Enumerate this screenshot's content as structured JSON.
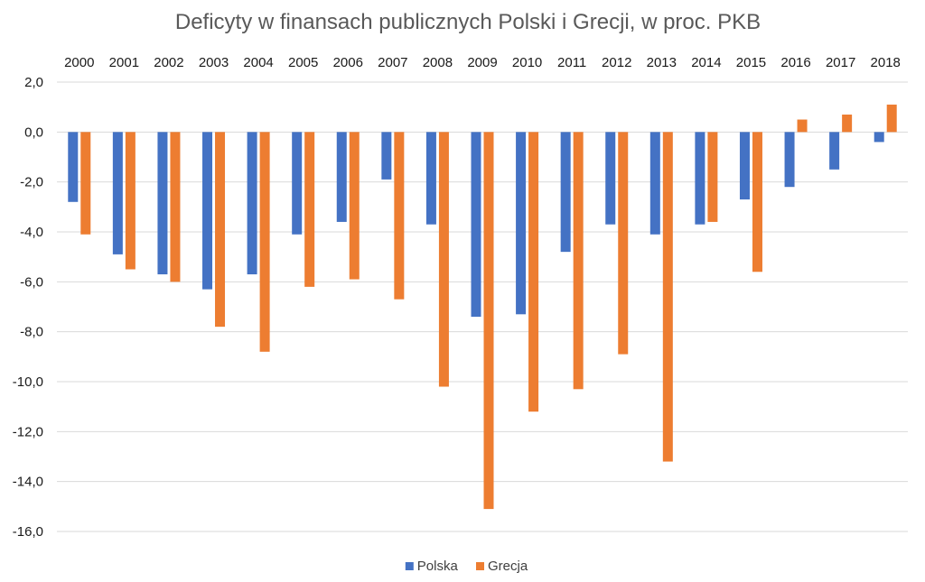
{
  "chart_data": {
    "type": "bar",
    "title": "Deficyty w finansach publicznych Polski i Grecji, w proc. PKB",
    "xlabel": "",
    "ylabel": "",
    "categories": [
      "2000",
      "2001",
      "2002",
      "2003",
      "2004",
      "2005",
      "2006",
      "2007",
      "2008",
      "2009",
      "2010",
      "2011",
      "2012",
      "2013",
      "2014",
      "2015",
      "2016",
      "2017",
      "2018"
    ],
    "series": [
      {
        "name": "Polska",
        "color": "#4472C4",
        "values": [
          -2.8,
          -4.9,
          -5.7,
          -6.3,
          -5.7,
          -4.1,
          -3.6,
          -1.9,
          -3.7,
          -7.4,
          -7.3,
          -4.8,
          -3.7,
          -4.1,
          -3.7,
          -2.7,
          -2.2,
          -1.5,
          -0.4
        ]
      },
      {
        "name": "Grecja",
        "color": "#ED7D31",
        "values": [
          -4.1,
          -5.5,
          -6.0,
          -7.8,
          -8.8,
          -6.2,
          -5.9,
          -6.7,
          -10.2,
          -15.1,
          -11.2,
          -10.3,
          -8.9,
          -13.2,
          -3.6,
          -5.6,
          0.5,
          0.7,
          1.1
        ]
      }
    ],
    "y_ticks": [
      "2,0",
      "0,0",
      "-2,0",
      "-4,0",
      "-6,0",
      "-8,0",
      "-10,0",
      "-12,0",
      "-14,0",
      "-16,0"
    ],
    "ylim": [
      -16,
      2
    ],
    "ystep": 2,
    "grid": true,
    "category_labels_position": "top",
    "legend_position": "bottom"
  }
}
